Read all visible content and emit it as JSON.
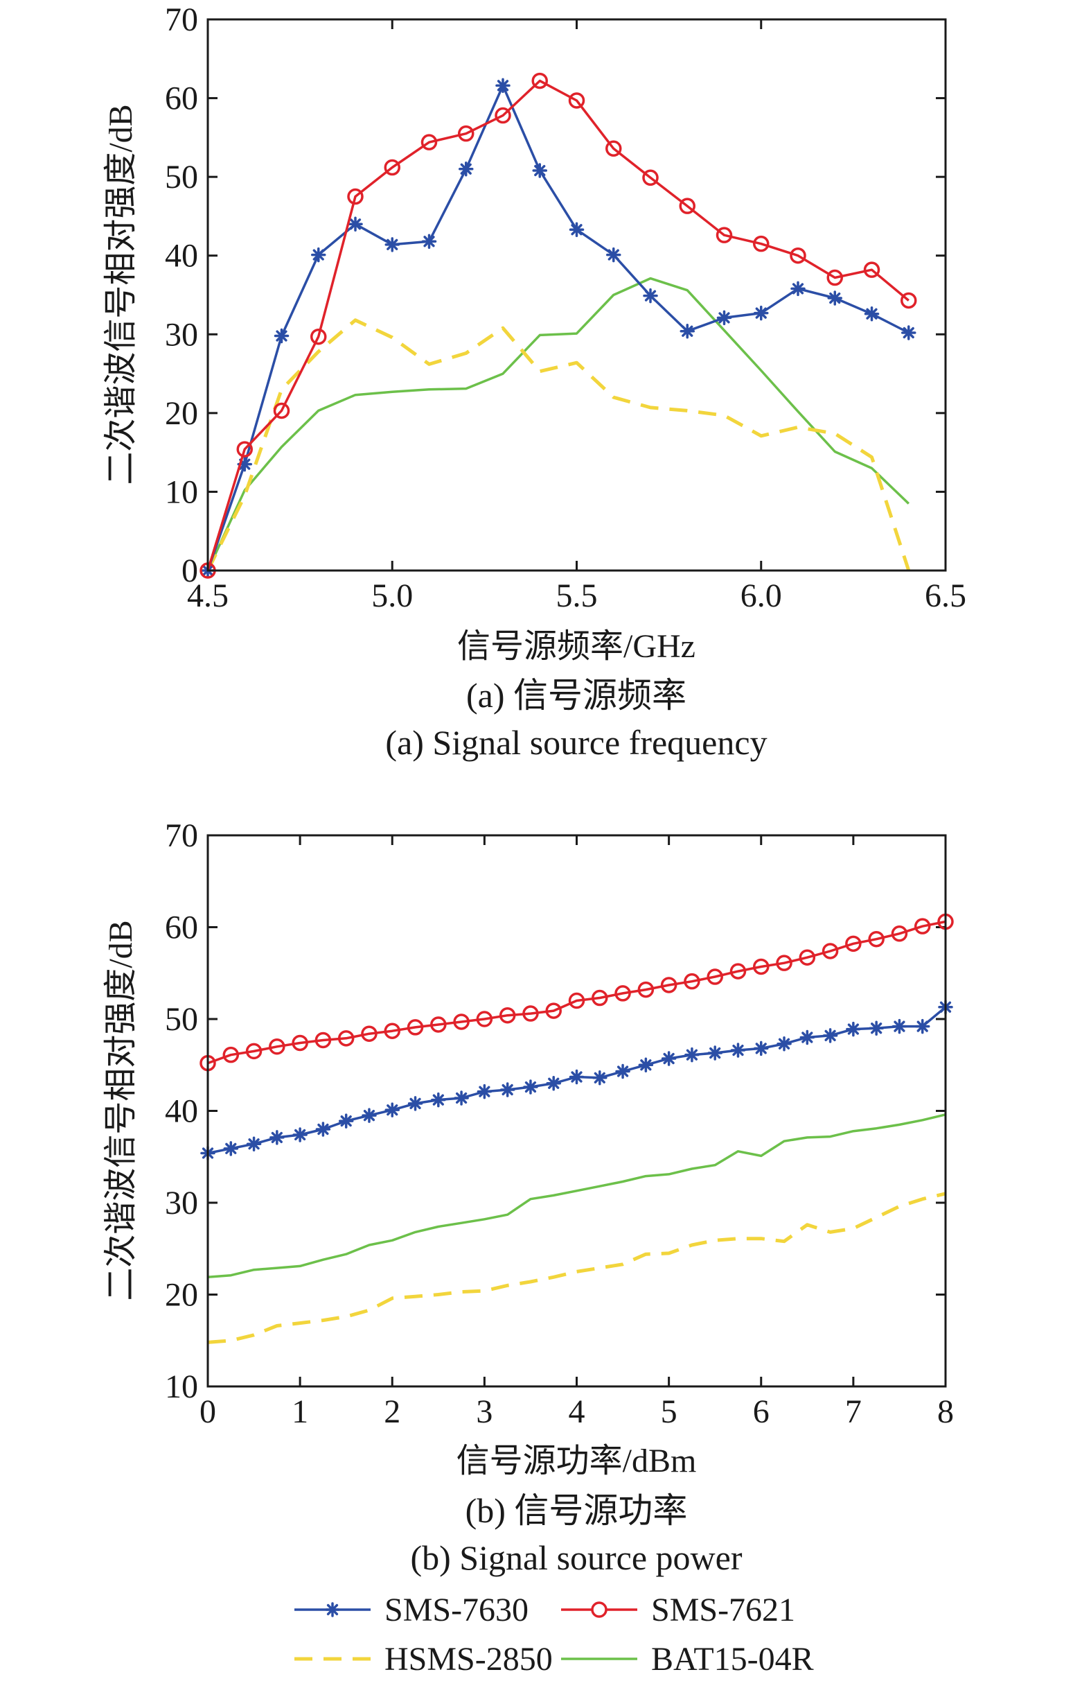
{
  "colors": {
    "SMS-7630": "#2b4ea6",
    "SMS-7621": "#e0222a",
    "HSMS-2850": "#f2d53c",
    "BAT15-04R": "#6cc04a",
    "axis": "#1a1a1a"
  },
  "legend": {
    "placement": "bottom",
    "entries": [
      "SMS-7630",
      "SMS-7621",
      "HSMS-2850",
      "BAT15-04R"
    ]
  },
  "chart_data": [
    {
      "type": "line",
      "xlabel": "信号源频率/GHz",
      "ylabel": "二次谐波信号相对强度/dB",
      "caption_cn": "(a) 信号源频率",
      "caption_en": "(a) Signal source frequency",
      "xlim": [
        4.5,
        6.5
      ],
      "ylim": [
        0,
        70
      ],
      "xticks": [
        4.5,
        5.0,
        5.5,
        6.0,
        6.5
      ],
      "xtick_labels": [
        "4.5",
        "5.0",
        "5.5",
        "6.0",
        "6.5"
      ],
      "yticks": [
        0,
        10,
        20,
        30,
        40,
        50,
        60,
        70
      ],
      "ytick_labels": [
        "0",
        "10",
        "20",
        "30",
        "40",
        "50",
        "60",
        "70"
      ],
      "grid": false,
      "series": [
        {
          "name": "SMS-7630",
          "marker": "asterisk",
          "x": [
            4.5,
            4.6,
            4.7,
            4.8,
            4.9,
            5.0,
            5.1,
            5.2,
            5.3,
            5.4,
            5.5,
            5.6,
            5.7,
            5.8,
            5.9,
            6.0,
            6.1,
            6.2,
            6.3,
            6.4
          ],
          "y": [
            0,
            13.5,
            29.8,
            40.1,
            44.0,
            41.4,
            41.8,
            51.0,
            61.6,
            50.8,
            43.3,
            40.1,
            34.9,
            30.4,
            32.1,
            32.7,
            35.8,
            34.6,
            32.6,
            30.2
          ]
        },
        {
          "name": "SMS-7621",
          "marker": "circle",
          "x": [
            4.5,
            4.6,
            4.7,
            4.8,
            4.9,
            5.0,
            5.1,
            5.2,
            5.3,
            5.4,
            5.5,
            5.6,
            5.7,
            5.8,
            5.9,
            6.0,
            6.1,
            6.2,
            6.3,
            6.4
          ],
          "y": [
            0,
            15.4,
            20.3,
            29.7,
            47.5,
            51.2,
            54.4,
            55.5,
            57.8,
            62.2,
            59.7,
            53.6,
            49.9,
            46.3,
            42.6,
            41.5,
            40.0,
            37.2,
            38.2,
            34.3
          ]
        },
        {
          "name": "HSMS-2850",
          "marker": "none",
          "dash": true,
          "x": [
            4.5,
            4.6,
            4.7,
            4.8,
            4.9,
            5.0,
            5.1,
            5.2,
            5.3,
            5.4,
            5.5,
            5.6,
            5.7,
            5.8,
            5.9,
            6.0,
            6.1,
            6.2,
            6.3,
            6.4
          ],
          "y": [
            0,
            9.5,
            23.0,
            27.8,
            31.8,
            29.6,
            26.2,
            27.6,
            30.8,
            25.3,
            26.4,
            22.0,
            20.7,
            20.3,
            19.7,
            17.1,
            18.2,
            17.4,
            14.4,
            0
          ]
        },
        {
          "name": "BAT15-04R",
          "marker": "none",
          "x": [
            4.5,
            4.6,
            4.7,
            4.8,
            4.9,
            5.0,
            5.1,
            5.2,
            5.3,
            5.4,
            5.5,
            5.6,
            5.7,
            5.8,
            5.9,
            6.0,
            6.1,
            6.2,
            6.3,
            6.4
          ],
          "y": [
            0,
            10.2,
            15.7,
            20.3,
            22.3,
            22.7,
            23.0,
            23.1,
            25.0,
            29.9,
            30.1,
            35.0,
            37.1,
            35.6,
            30.5,
            25.4,
            20.2,
            15.1,
            13.0,
            8.5
          ]
        }
      ]
    },
    {
      "type": "line",
      "xlabel": "信号源功率/dBm",
      "ylabel": "二次谐波信号相对强度/dB",
      "caption_cn": "(b) 信号源功率",
      "caption_en": "(b) Signal source power",
      "xlim": [
        0,
        8
      ],
      "ylim": [
        10,
        70
      ],
      "xticks": [
        0,
        1,
        2,
        3,
        4,
        5,
        6,
        7,
        8
      ],
      "xtick_labels": [
        "0",
        "1",
        "2",
        "3",
        "4",
        "5",
        "6",
        "7",
        "8"
      ],
      "yticks": [
        10,
        20,
        30,
        40,
        50,
        60,
        70
      ],
      "ytick_labels": [
        "10",
        "20",
        "30",
        "40",
        "50",
        "60",
        "70"
      ],
      "grid": false,
      "series": [
        {
          "name": "SMS-7630",
          "marker": "asterisk",
          "x": [
            0,
            0.25,
            0.5,
            0.75,
            1.0,
            1.25,
            1.5,
            1.75,
            2.0,
            2.25,
            2.5,
            2.75,
            3.0,
            3.25,
            3.5,
            3.75,
            4.0,
            4.25,
            4.5,
            4.75,
            5.0,
            5.25,
            5.5,
            5.75,
            6.0,
            6.25,
            6.5,
            6.75,
            7.0,
            7.25,
            7.5,
            7.75,
            8.0
          ],
          "y": [
            35.4,
            35.9,
            36.4,
            37.1,
            37.4,
            38.0,
            38.9,
            39.5,
            40.1,
            40.8,
            41.2,
            41.4,
            42.1,
            42.3,
            42.6,
            43.0,
            43.7,
            43.6,
            44.3,
            45.0,
            45.7,
            46.1,
            46.3,
            46.6,
            46.8,
            47.3,
            48.0,
            48.2,
            48.9,
            49.0,
            49.2,
            49.2,
            51.3
          ]
        },
        {
          "name": "SMS-7621",
          "marker": "circle",
          "x": [
            0,
            0.25,
            0.5,
            0.75,
            1.0,
            1.25,
            1.5,
            1.75,
            2.0,
            2.25,
            2.5,
            2.75,
            3.0,
            3.25,
            3.5,
            3.75,
            4.0,
            4.25,
            4.5,
            4.75,
            5.0,
            5.25,
            5.5,
            5.75,
            6.0,
            6.25,
            6.5,
            6.75,
            7.0,
            7.25,
            7.5,
            7.75,
            8.0
          ],
          "y": [
            45.2,
            46.1,
            46.5,
            47.0,
            47.4,
            47.7,
            47.9,
            48.4,
            48.7,
            49.1,
            49.4,
            49.7,
            50.0,
            50.4,
            50.6,
            50.9,
            52.0,
            52.3,
            52.8,
            53.2,
            53.7,
            54.1,
            54.6,
            55.2,
            55.7,
            56.1,
            56.7,
            57.4,
            58.2,
            58.7,
            59.3,
            60.1,
            60.6
          ]
        },
        {
          "name": "HSMS-2850",
          "marker": "none",
          "dash": true,
          "x": [
            0,
            0.25,
            0.5,
            0.75,
            1.0,
            1.25,
            1.5,
            1.75,
            2.0,
            2.25,
            2.5,
            2.75,
            3.0,
            3.25,
            3.5,
            3.75,
            4.0,
            4.25,
            4.5,
            4.75,
            5.0,
            5.25,
            5.5,
            5.75,
            6.0,
            6.25,
            6.5,
            6.75,
            7.0,
            7.25,
            7.5,
            7.75,
            8.0
          ],
          "y": [
            14.8,
            15.0,
            15.6,
            16.6,
            16.9,
            17.2,
            17.6,
            18.3,
            19.6,
            19.8,
            20.0,
            20.3,
            20.4,
            21.0,
            21.4,
            21.9,
            22.5,
            22.9,
            23.3,
            24.4,
            24.5,
            25.4,
            25.9,
            26.1,
            26.1,
            25.8,
            27.6,
            26.8,
            27.2,
            28.4,
            29.6,
            30.4,
            31.0
          ]
        },
        {
          "name": "BAT15-04R",
          "marker": "none",
          "x": [
            0,
            0.25,
            0.5,
            0.75,
            1.0,
            1.25,
            1.5,
            1.75,
            2.0,
            2.25,
            2.5,
            2.75,
            3.0,
            3.25,
            3.5,
            3.75,
            4.0,
            4.25,
            4.5,
            4.75,
            5.0,
            5.25,
            5.5,
            5.75,
            6.0,
            6.25,
            6.5,
            6.75,
            7.0,
            7.25,
            7.5,
            7.75,
            8.0
          ],
          "y": [
            21.9,
            22.1,
            22.7,
            22.9,
            23.1,
            23.8,
            24.4,
            25.4,
            25.9,
            26.8,
            27.4,
            27.8,
            28.2,
            28.7,
            30.4,
            30.8,
            31.3,
            31.8,
            32.3,
            32.9,
            33.1,
            33.7,
            34.1,
            35.6,
            35.1,
            36.7,
            37.1,
            37.2,
            37.8,
            38.1,
            38.5,
            39.0,
            39.6
          ]
        }
      ]
    }
  ]
}
